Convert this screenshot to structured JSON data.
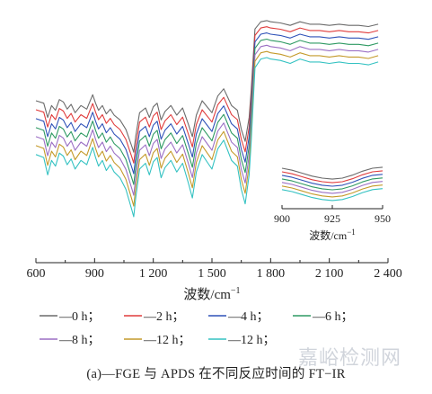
{
  "chart_data": {
    "type": "line",
    "title": "",
    "xlabel": "波数/cm",
    "xlabel_sup": "−1",
    "ylabel": "",
    "xlim": [
      600,
      2400
    ],
    "xticks": [
      600,
      900,
      1200,
      1500,
      1800,
      2100,
      2400
    ],
    "xtick_labels": [
      "600",
      "900",
      "1 200",
      "1 500",
      "1 800",
      "2 100",
      "2 400"
    ],
    "grid": false,
    "legend_position": "bottom",
    "series": [
      {
        "name": "—0 h；",
        "color": "#6b6b6b",
        "offset": 0
      },
      {
        "name": "—2 h；",
        "color": "#e03c3c",
        "offset": 1
      },
      {
        "name": "—4 h；",
        "color": "#2f52b8",
        "offset": 2
      },
      {
        "name": "—6 h；",
        "color": "#2f9a63",
        "offset": 3
      },
      {
        "name": "—8 h；",
        "color": "#9b6fc4",
        "offset": 4
      },
      {
        "name": "—12 h；",
        "color": "#c49a2a",
        "offset": 5
      },
      {
        "name": "—12 h；",
        "color": "#34c2c2",
        "offset": 6
      }
    ],
    "spectrum_x": [
      600,
      640,
      660,
      680,
      700,
      720,
      740,
      760,
      780,
      800,
      830,
      860,
      890,
      905,
      920,
      940,
      960,
      980,
      1000,
      1030,
      1060,
      1090,
      1100,
      1110,
      1130,
      1160,
      1180,
      1200,
      1220,
      1240,
      1260,
      1290,
      1320,
      1350,
      1380,
      1400,
      1420,
      1450,
      1480,
      1500,
      1530,
      1560,
      1600,
      1630,
      1650,
      1670,
      1690,
      1700,
      1720,
      1750,
      1780,
      1800,
      1850,
      1900,
      1950,
      2000,
      2050,
      2100,
      2150,
      2200,
      2250,
      2300,
      2350
    ],
    "spectrum_y": [
      0,
      -2,
      -14,
      -4,
      -8,
      1,
      -1,
      -7,
      -3,
      -10,
      -4,
      -7,
      5,
      -2,
      -8,
      -4,
      -11,
      -7,
      -12,
      -16,
      -24,
      -38,
      -43,
      -30,
      -10,
      -6,
      -14,
      -5,
      -2,
      -16,
      -9,
      -4,
      -12,
      -6,
      -20,
      -30,
      -12,
      0,
      -6,
      -10,
      4,
      10,
      -4,
      -8,
      -24,
      -34,
      -14,
      8,
      60,
      66,
      67,
      66,
      65,
      63,
      66,
      64,
      64,
      63,
      64,
      63,
      63,
      62,
      64
    ],
    "series_spacing": 7.5,
    "inset": {
      "xlim": [
        900,
        950
      ],
      "xticks": [
        900,
        925,
        950
      ],
      "xtick_labels": [
        "900",
        "925",
        "950"
      ],
      "xlabel": "波数/cm",
      "xlabel_sup": "−1",
      "curve_x": [
        900,
        905,
        910,
        915,
        920,
        925,
        930,
        935,
        940,
        945,
        950
      ],
      "curve_y": [
        10,
        8,
        5,
        2,
        0,
        -1,
        0,
        3,
        7,
        10,
        11
      ],
      "series_spacing": 3.6
    }
  },
  "caption": "(a)—FGE 与 APDS 在不同反应时间的 FT−IR",
  "watermark": "嘉峪检测网"
}
